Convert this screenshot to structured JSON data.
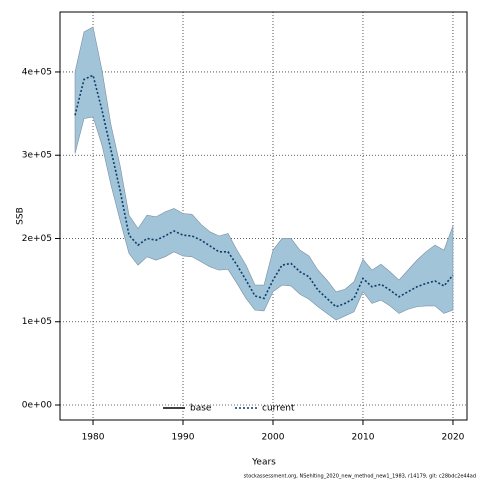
{
  "chart_data": {
    "type": "line",
    "xlabel": "Years",
    "ylabel": "SSB",
    "caption": "stockassessment.org, NSehlting_2020_new_method_new1_1983, r14179, git: c28bdc2e44ad",
    "x": [
      1978,
      1979,
      1980,
      1981,
      1982,
      1983,
      1984,
      1985,
      1986,
      1987,
      1988,
      1989,
      1990,
      1991,
      1992,
      1993,
      1994,
      1995,
      1996,
      1997,
      1998,
      1999,
      2000,
      2001,
      2002,
      2003,
      2004,
      2005,
      2006,
      2007,
      2008,
      2009,
      2010,
      2011,
      2012,
      2013,
      2014,
      2015,
      2016,
      2017,
      2018,
      2019,
      2020
    ],
    "series": [
      {
        "name": "base",
        "color": "#000000",
        "dash": "solid",
        "values": [
          null,
          null,
          null,
          null,
          null,
          null,
          null,
          null,
          null,
          null,
          null,
          null,
          null,
          null,
          null,
          null,
          null,
          null,
          null,
          null,
          null,
          null,
          null,
          null,
          null,
          null,
          null,
          null,
          null,
          null,
          null,
          null,
          null,
          null,
          null,
          null,
          null,
          null,
          null,
          null,
          null,
          null,
          null
        ]
      },
      {
        "name": "current",
        "color": "#0b3d66",
        "dash": "dotted",
        "values": [
          348000,
          391000,
          396000,
          354000,
          306000,
          258000,
          204000,
          192000,
          200000,
          198000,
          203000,
          209000,
          204000,
          203000,
          198000,
          191000,
          184000,
          184000,
          168000,
          150000,
          131000,
          128000,
          150000,
          168000,
          170000,
          160000,
          154000,
          138000,
          128000,
          118000,
          122000,
          128000,
          152000,
          142000,
          145000,
          138000,
          130000,
          136000,
          142000,
          146000,
          149000,
          143000,
          156000
        ]
      }
    ],
    "band": {
      "color": "#a2c4d9",
      "upper": [
        400000,
        448000,
        454000,
        402000,
        336000,
        288000,
        228000,
        212000,
        228000,
        226000,
        232000,
        236000,
        230000,
        229000,
        217000,
        208000,
        203000,
        206000,
        186000,
        168000,
        144000,
        144000,
        186000,
        200000,
        200000,
        186000,
        179000,
        162000,
        150000,
        136000,
        139000,
        148000,
        175000,
        162000,
        169000,
        160000,
        150000,
        162000,
        174000,
        184000,
        192000,
        186000,
        215000
      ],
      "lower": [
        302000,
        344000,
        346000,
        312000,
        264000,
        222000,
        182000,
        168000,
        178000,
        174000,
        178000,
        184000,
        179000,
        178000,
        172000,
        166000,
        162000,
        163000,
        146000,
        128000,
        114000,
        113000,
        136000,
        144000,
        143000,
        133000,
        127000,
        118000,
        110000,
        102000,
        107000,
        112000,
        136000,
        122000,
        126000,
        119000,
        110000,
        115000,
        118000,
        119000,
        119000,
        110000,
        114000
      ]
    },
    "xlim": [
      1976.33,
      2021.56
    ],
    "xticks": [
      1980,
      1990,
      2000,
      2010,
      2020
    ],
    "ylim": [
      -18000,
      472000
    ],
    "yticks": [
      {
        "value": 0,
        "label": "0e+00"
      },
      {
        "value": 100000,
        "label": "1e+05"
      },
      {
        "value": 200000,
        "label": "2e+05"
      },
      {
        "value": 300000,
        "label": "3e+05"
      },
      {
        "value": 400000,
        "label": "4e+05"
      }
    ],
    "grid": true,
    "legend": "bottom"
  }
}
